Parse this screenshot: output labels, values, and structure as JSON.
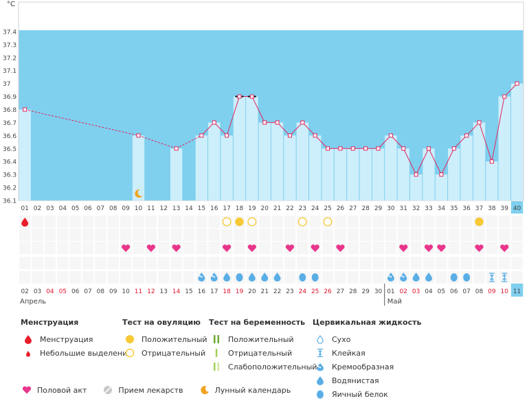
{
  "chart_data": {
    "type": "line",
    "title": "",
    "unit": "°C",
    "ylim": [
      36.1,
      37.5
    ],
    "yticks": [
      "37.4",
      "37.3",
      "37.2",
      "37.1",
      "37",
      "36.9",
      "36.8",
      "36.7",
      "36.6",
      "36.5",
      "36.4",
      "36.3",
      "36.2",
      "36.1"
    ],
    "cycle_days": [
      "01",
      "02",
      "03",
      "04",
      "05",
      "06",
      "07",
      "08",
      "09",
      "10",
      "11",
      "12",
      "13",
      "14",
      "15",
      "16",
      "17",
      "18",
      "19",
      "20",
      "21",
      "22",
      "23",
      "24",
      "25",
      "26",
      "27",
      "28",
      "29",
      "30",
      "31",
      "32",
      "33",
      "34",
      "35",
      "36",
      "37",
      "38",
      "39",
      "40"
    ],
    "current_cycle_day": "40",
    "temperatures": [
      36.8,
      null,
      null,
      null,
      null,
      null,
      null,
      null,
      null,
      36.6,
      null,
      null,
      36.5,
      null,
      36.6,
      36.7,
      36.6,
      36.9,
      36.9,
      36.7,
      36.7,
      36.6,
      36.7,
      36.6,
      36.5,
      36.5,
      36.5,
      36.5,
      36.5,
      36.6,
      36.5,
      36.3,
      36.5,
      36.3,
      36.5,
      36.6,
      36.7,
      36.4,
      36.9,
      37.0
    ],
    "highlighted_days": [
      "18",
      "19"
    ],
    "dates": [
      "02",
      "03",
      "04",
      "05",
      "06",
      "07",
      "08",
      "09",
      "10",
      "11",
      "12",
      "13",
      "14",
      "15",
      "16",
      "17",
      "18",
      "19",
      "20",
      "21",
      "22",
      "23",
      "24",
      "25",
      "26",
      "27",
      "28",
      "29",
      "30",
      "01",
      "02",
      "03",
      "04",
      "05",
      "06",
      "07",
      "08",
      "09",
      "10",
      "11"
    ],
    "red_date_indices": [
      2,
      3,
      9,
      10,
      12,
      16,
      17,
      22,
      23,
      24,
      30,
      31,
      37,
      38
    ],
    "current_date": "11",
    "month_labels": [
      {
        "label": "Апрель",
        "index": 0
      },
      {
        "label": "Май",
        "index": 29
      }
    ],
    "markers": {
      "menstruation": [
        1
      ],
      "lunar": [
        10
      ],
      "ovulation_positive": [
        18,
        37
      ],
      "ovulation_negative": [
        17,
        19,
        23,
        25
      ],
      "intercourse": [
        9,
        11,
        13,
        17,
        19,
        22,
        24,
        26,
        31,
        33,
        34,
        37,
        39
      ],
      "cervical_creamy": [
        15,
        16,
        30,
        31
      ],
      "cervical_watery": [
        17,
        19,
        20,
        21,
        33
      ],
      "cervical_eggwhite": [
        18,
        23,
        24,
        35,
        36
      ],
      "cervical_watery_only": [
        32
      ],
      "cervical_sticky": [
        38,
        39
      ]
    }
  },
  "legend": {
    "menstruation": {
      "title": "Менструация",
      "items": [
        "Менструация",
        "Небольшие выделения"
      ]
    },
    "ovulation": {
      "title": "Тест на овуляцию",
      "items": [
        "Положительный",
        "Отрицательный"
      ]
    },
    "pregnancy": {
      "title": "Тест на беременность",
      "items": [
        "Положительный",
        "Отрицательный",
        "Слабоположительный"
      ]
    },
    "cervical": {
      "title": "Цервикальная жидкость",
      "items": [
        "Сухо",
        "Клейкая",
        "Кремообразная",
        "Водянистая",
        "Яичный белок"
      ]
    },
    "bottom": [
      "Половой акт",
      "Прием лекарств",
      "Лунный календарь"
    ]
  },
  "colors": {
    "band": "#7fd0ef",
    "bar": "#cdeefb",
    "line": "#e2245b",
    "heart": "#e8368a",
    "drop": "#5aaee6",
    "ovulation": "#f6c935",
    "lunar": "#f2a31f",
    "menstruation": "#e81e2a",
    "pregnancy_pos": "#6aab2e",
    "pregnancy_neg": "#a3cf57",
    "pregnancy_weak": "#cfe7a6"
  }
}
